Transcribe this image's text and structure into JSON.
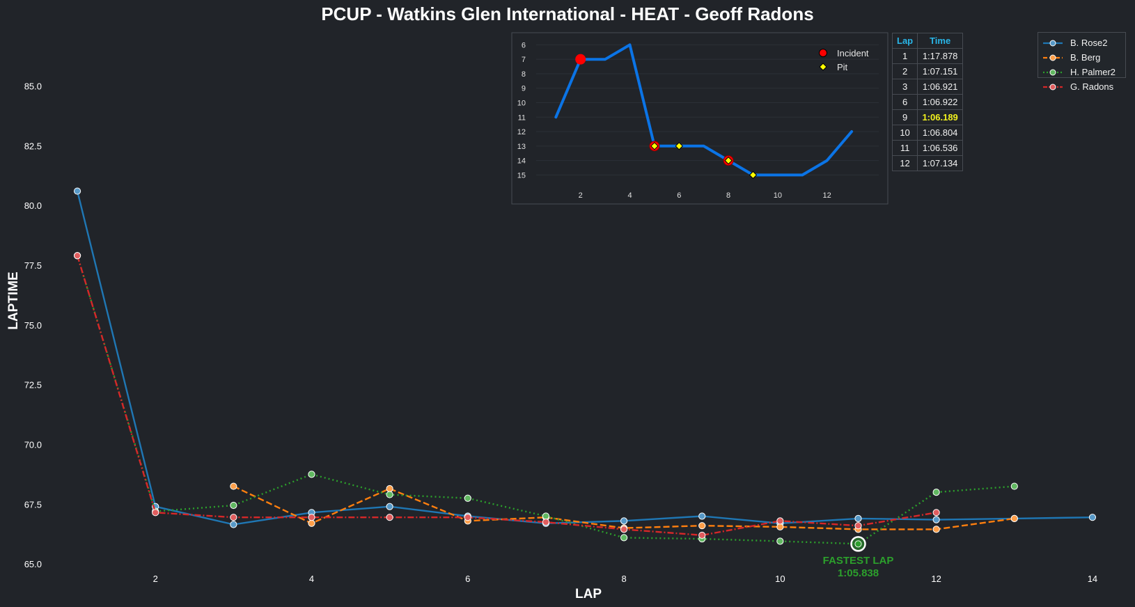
{
  "chart_data": [
    {
      "type": "line",
      "title": "PCUP - Watkins Glen International - HEAT - Geoff Radons",
      "xlabel": "LAP",
      "ylabel": "LAPTIME",
      "xlim": [
        0.5,
        14.5
      ],
      "ylim": [
        64.8,
        87.2
      ],
      "xticks": [
        2,
        4,
        6,
        8,
        10,
        12,
        14
      ],
      "yticks": [
        65.0,
        67.5,
        70.0,
        72.5,
        75.0,
        77.5,
        80.0,
        82.5,
        85.0
      ],
      "grid": false,
      "legend_position": "top-right",
      "series": [
        {
          "name": "B. Rose2",
          "color": "#1f77b4",
          "style": "solid",
          "points": [
            [
              1,
              80.6
            ],
            [
              2,
              67.4
            ],
            [
              3,
              66.65
            ],
            [
              4,
              67.15
            ],
            [
              5,
              67.4
            ],
            [
              6,
              67.0
            ],
            [
              7,
              66.7
            ],
            [
              8,
              66.8
            ],
            [
              9,
              67.0
            ],
            [
              10,
              66.7
            ],
            [
              11,
              66.9
            ],
            [
              12,
              66.85
            ],
            [
              13,
              66.9
            ],
            [
              14,
              66.95
            ]
          ]
        },
        {
          "name": "B. Berg",
          "color": "#ff7f0e",
          "style": "dashed",
          "points": [
            [
              3,
              68.25
            ],
            [
              4,
              66.7
            ],
            [
              5,
              68.15
            ],
            [
              6,
              66.8
            ],
            [
              7,
              66.95
            ],
            [
              8,
              66.5
            ],
            [
              9,
              66.6
            ],
            [
              10,
              66.55
            ],
            [
              11,
              66.45
            ],
            [
              12,
              66.45
            ],
            [
              13,
              66.9
            ]
          ]
        },
        {
          "name": "H. Palmer2",
          "color": "#2ca02c",
          "style": "dotted",
          "points": [
            [
              1,
              77.9
            ],
            [
              2,
              67.2
            ],
            [
              3,
              67.45
            ],
            [
              4,
              68.75
            ],
            [
              5,
              67.9
            ],
            [
              6,
              67.75
            ],
            [
              7,
              67.0
            ],
            [
              8,
              66.1
            ],
            [
              9,
              66.05
            ],
            [
              10,
              65.95
            ],
            [
              11,
              65.84
            ],
            [
              12,
              68.0
            ],
            [
              13,
              68.25
            ]
          ]
        },
        {
          "name": "G. Radons",
          "color": "#d62728",
          "style": "dashdot",
          "points": [
            [
              1,
              77.9
            ],
            [
              2,
              67.15
            ],
            [
              3,
              66.95
            ],
            [
              4,
              66.95
            ],
            [
              5,
              66.95
            ],
            [
              6,
              66.95
            ],
            [
              7,
              66.75
            ],
            [
              8,
              66.45
            ],
            [
              9,
              66.2
            ],
            [
              10,
              66.8
            ],
            [
              11,
              66.6
            ],
            [
              12,
              67.15
            ]
          ]
        }
      ],
      "annotation": {
        "label": "FASTEST LAP",
        "time": "1:05.838",
        "x": 11,
        "y": 65.838,
        "color": "#2ca02c"
      }
    },
    {
      "type": "line",
      "series_color": "#0b74e6",
      "xlim": [
        0.2,
        14.1
      ],
      "ylim": [
        15.8,
        5.5
      ],
      "y_inverted": true,
      "xticks": [
        2,
        4,
        6,
        8,
        10,
        12
      ],
      "yticks": [
        6,
        7,
        8,
        9,
        10,
        11,
        12,
        13,
        14,
        15
      ],
      "grid": true,
      "legend_position": "top-right",
      "positions": [
        [
          1,
          11
        ],
        [
          2,
          7
        ],
        [
          3,
          7
        ],
        [
          4,
          6
        ],
        [
          5,
          13
        ],
        [
          6,
          13
        ],
        [
          7,
          13
        ],
        [
          8,
          14
        ],
        [
          9,
          15
        ],
        [
          10,
          15
        ],
        [
          11,
          15
        ],
        [
          12,
          14
        ],
        [
          13,
          12
        ]
      ],
      "incident_laps": [
        2,
        5,
        8
      ],
      "pit_laps": [
        5,
        6,
        8,
        9
      ],
      "legend": [
        {
          "label": "Incident",
          "color": "#ff0000",
          "marker": "circle"
        },
        {
          "label": "Pit",
          "color": "#ffff00",
          "marker": "diamond"
        }
      ]
    }
  ],
  "lap_table": {
    "headers": [
      "Lap",
      "Time"
    ],
    "rows": [
      [
        "1",
        "1:17.878"
      ],
      [
        "2",
        "1:07.151"
      ],
      [
        "3",
        "1:06.921"
      ],
      [
        "6",
        "1:06.922"
      ],
      [
        "9",
        "1:06.189"
      ],
      [
        "10",
        "1:06.804"
      ],
      [
        "11",
        "1:06.536"
      ],
      [
        "12",
        "1:07.134"
      ]
    ],
    "best_row": 4,
    "best_color": "#f2f21e"
  }
}
